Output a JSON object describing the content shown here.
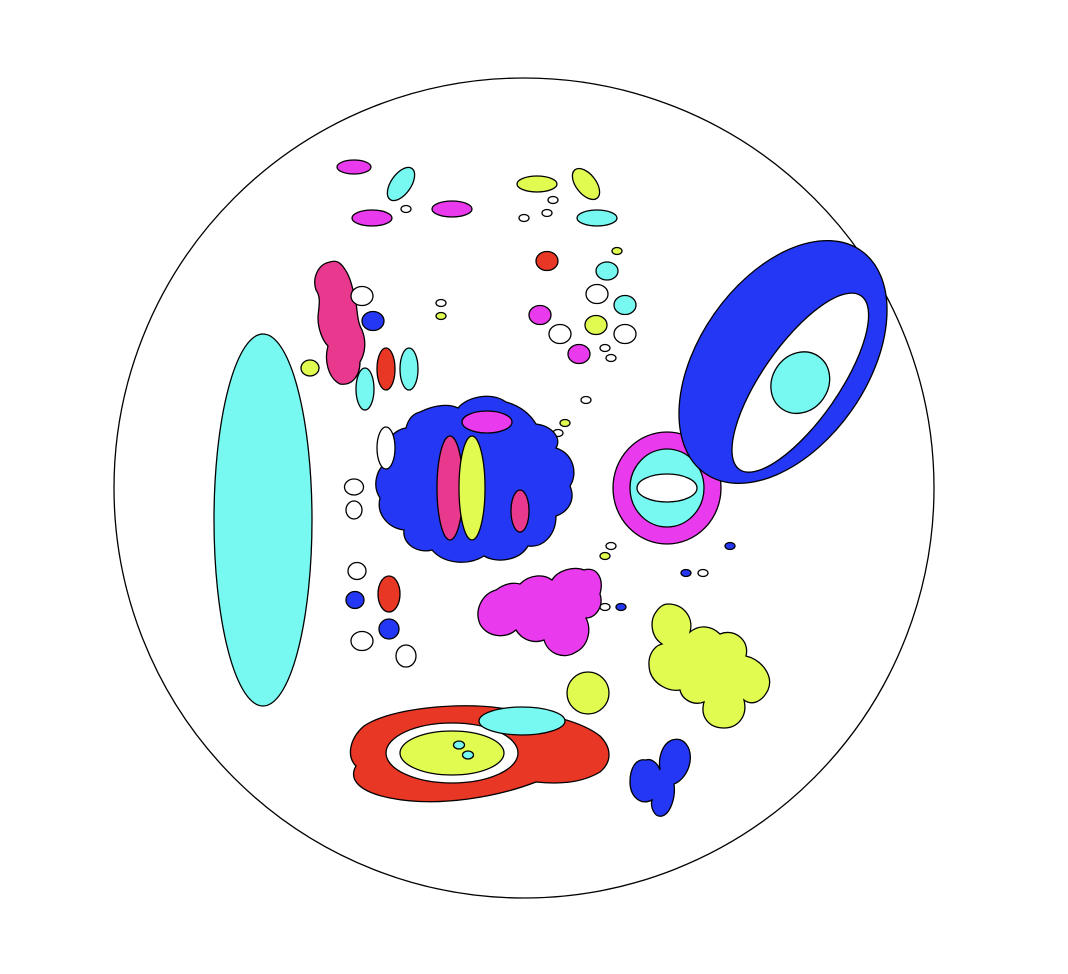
{
  "palette": {
    "cyan": "#77F9F2",
    "blue": "#2437F4",
    "magenta": "#E93AEE",
    "pink": "#E9398E",
    "red": "#E83725",
    "yellow": "#E2FB51",
    "white": "#FFFFFF",
    "outline": "#000000"
  },
  "components": [
    "cell-membrane",
    "large-cyan-vacuole",
    "blue-nucleus",
    "magenta-ring-organelle",
    "blue-tilted-organelle",
    "magenta-cluster",
    "yellow-cluster",
    "red-organelle",
    "blue-small-cluster",
    "pink-lobed-cluster",
    "small-vesicles"
  ]
}
